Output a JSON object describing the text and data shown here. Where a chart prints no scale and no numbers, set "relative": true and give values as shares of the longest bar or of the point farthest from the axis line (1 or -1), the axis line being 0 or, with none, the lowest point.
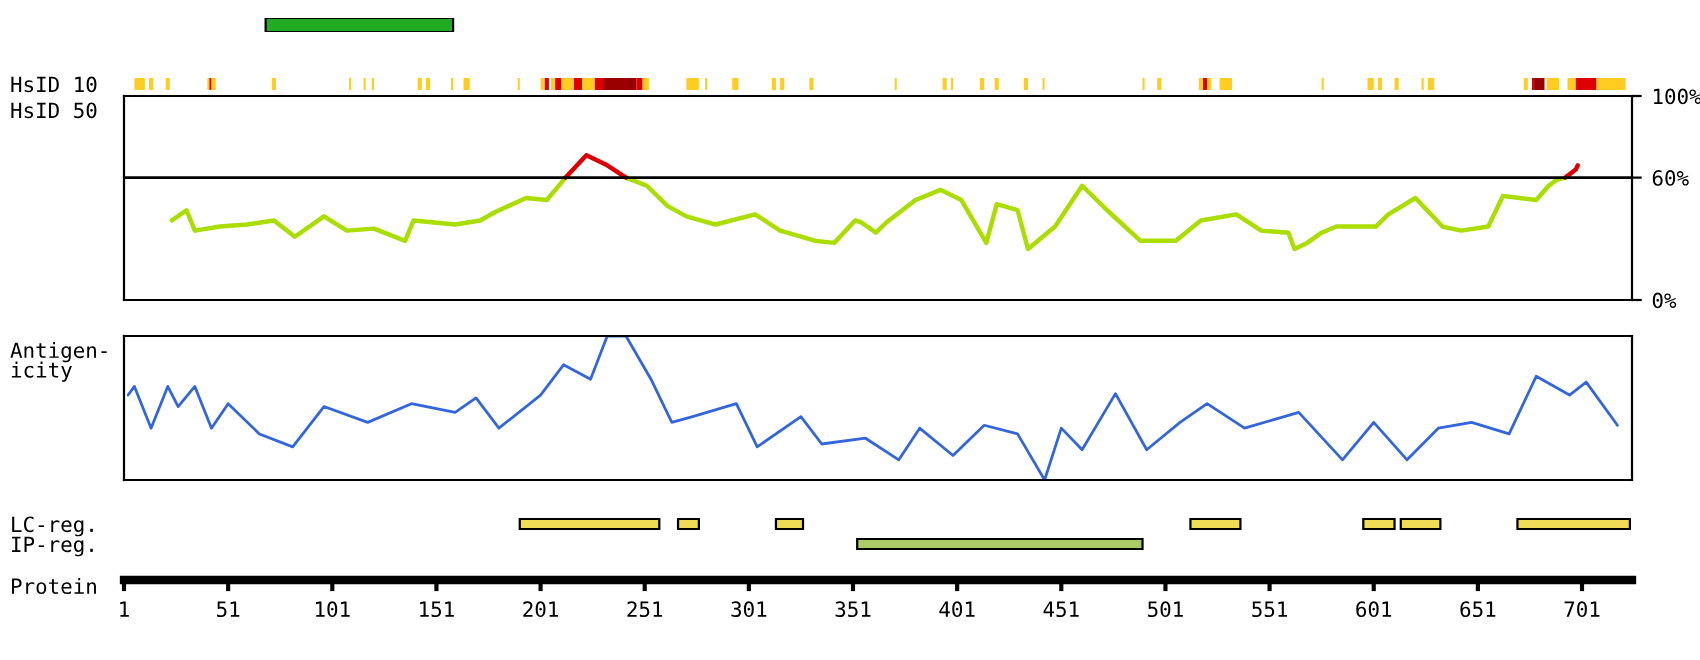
{
  "chart_data": [
    {
      "type": "bar",
      "orientation": "horizontal",
      "categories": [
        null
      ],
      "values": [
        90
      ],
      "base": [
        69
      ],
      "color": "#22aa22",
      "xlim": [
        1,
        701
      ],
      "xticks": [
        1,
        51,
        101,
        151,
        201,
        251,
        301,
        351,
        401,
        451,
        501,
        551,
        601,
        651,
        701
      ],
      "tick_labels": false
    },
    {
      "type": "bar",
      "orientation": "horizontal",
      "categories": [
        "HsID 10"
      ],
      "xlim": [
        1,
        725
      ],
      "xticks": [
        1,
        51,
        101,
        151,
        201,
        251,
        301,
        351,
        401,
        451,
        501,
        551,
        601,
        651,
        701
      ],
      "tick_labels": "y",
      "series": [
        {
          "color": "#ffcc22",
          "values": [
            5
          ],
          "base": [
            6
          ]
        },
        {
          "color": "#ffcc22",
          "values": [
            2
          ],
          "base": [
            13
          ]
        },
        {
          "color": "#ffcc22",
          "values": [
            2
          ],
          "base": [
            21
          ]
        },
        {
          "color": "#ffcc22",
          "values": [
            1
          ],
          "base": [
            41
          ]
        },
        {
          "color": "#dd0000",
          "values": [
            1
          ],
          "base": [
            42
          ]
        },
        {
          "color": "#ffcc22",
          "values": [
            2
          ],
          "base": [
            43
          ]
        },
        {
          "color": "#ffcc22",
          "values": [
            2
          ],
          "base": [
            72
          ]
        },
        {
          "color": "#ffcc22",
          "values": [
            1
          ],
          "base": [
            109
          ]
        },
        {
          "color": "#ffcc22",
          "values": [
            1
          ],
          "base": [
            116
          ]
        },
        {
          "color": "#ffcc22",
          "values": [
            1
          ],
          "base": [
            120
          ]
        },
        {
          "color": "#ffcc22",
          "values": [
            2
          ],
          "base": [
            142
          ]
        },
        {
          "color": "#ffcc22",
          "values": [
            2
          ],
          "base": [
            146
          ]
        },
        {
          "color": "#ffcc22",
          "values": [
            1
          ],
          "base": [
            158
          ]
        },
        {
          "color": "#ffcc22",
          "values": [
            3
          ],
          "base": [
            164
          ]
        },
        {
          "color": "#ffcc22",
          "values": [
            1
          ],
          "base": [
            190
          ]
        },
        {
          "color": "#ffcc22",
          "values": [
            2
          ],
          "base": [
            201
          ]
        },
        {
          "color": "#dd0000",
          "values": [
            2
          ],
          "base": [
            203
          ]
        },
        {
          "color": "#ffcc22",
          "values": [
            2
          ],
          "base": [
            206
          ]
        },
        {
          "color": "#dd0000",
          "values": [
            3
          ],
          "base": [
            208
          ]
        },
        {
          "color": "#ffcc22",
          "values": [
            6
          ],
          "base": [
            211
          ]
        },
        {
          "color": "#dd0000",
          "values": [
            4
          ],
          "base": [
            217
          ]
        },
        {
          "color": "#ffcc22",
          "values": [
            6
          ],
          "base": [
            221
          ]
        },
        {
          "color": "#dd0000",
          "values": [
            4
          ],
          "base": [
            227
          ]
        },
        {
          "color": "#990000",
          "values": [
            16
          ],
          "base": [
            231
          ]
        },
        {
          "color": "#dd0000",
          "values": [
            3
          ],
          "base": [
            247
          ]
        },
        {
          "color": "#ffcc22",
          "values": [
            3
          ],
          "base": [
            250
          ]
        },
        {
          "color": "#ffcc22",
          "values": [
            6
          ],
          "base": [
            271
          ]
        },
        {
          "color": "#ffcc22",
          "values": [
            1
          ],
          "base": [
            280
          ]
        },
        {
          "color": "#ffcc22",
          "values": [
            3
          ],
          "base": [
            293
          ]
        },
        {
          "color": "#ffcc22",
          "values": [
            2
          ],
          "base": [
            312
          ]
        },
        {
          "color": "#ffcc22",
          "values": [
            2
          ],
          "base": [
            316
          ]
        },
        {
          "color": "#ffcc22",
          "values": [
            2
          ],
          "base": [
            330
          ]
        },
        {
          "color": "#ffcc22",
          "values": [
            1
          ],
          "base": [
            371
          ]
        },
        {
          "color": "#ffcc22",
          "values": [
            2
          ],
          "base": [
            394
          ]
        },
        {
          "color": "#ffcc22",
          "values": [
            1
          ],
          "base": [
            398
          ]
        },
        {
          "color": "#ffcc22",
          "values": [
            2
          ],
          "base": [
            412
          ]
        },
        {
          "color": "#ffcc22",
          "values": [
            2
          ],
          "base": [
            419
          ]
        },
        {
          "color": "#ffcc22",
          "values": [
            2
          ],
          "base": [
            433
          ]
        },
        {
          "color": "#ffcc22",
          "values": [
            1
          ],
          "base": [
            442
          ]
        },
        {
          "color": "#ffcc22",
          "values": [
            1
          ],
          "base": [
            490
          ]
        },
        {
          "color": "#ffcc22",
          "values": [
            2
          ],
          "base": [
            497
          ]
        },
        {
          "color": "#ffcc22",
          "values": [
            2
          ],
          "base": [
            517
          ]
        },
        {
          "color": "#dd0000",
          "values": [
            2
          ],
          "base": [
            519
          ]
        },
        {
          "color": "#ffcc22",
          "values": [
            2
          ],
          "base": [
            521
          ]
        },
        {
          "color": "#ffcc22",
          "values": [
            6
          ],
          "base": [
            527
          ]
        },
        {
          "color": "#ffcc22",
          "values": [
            1
          ],
          "base": [
            576
          ]
        },
        {
          "color": "#ffcc22",
          "values": [
            3
          ],
          "base": [
            598
          ]
        },
        {
          "color": "#ffcc22",
          "values": [
            2
          ],
          "base": [
            603
          ]
        },
        {
          "color": "#ffcc22",
          "values": [
            2
          ],
          "base": [
            611
          ]
        },
        {
          "color": "#ffcc22",
          "values": [
            1
          ],
          "base": [
            624
          ]
        },
        {
          "color": "#ffcc22",
          "values": [
            3
          ],
          "base": [
            627
          ]
        },
        {
          "color": "#ffcc22",
          "values": [
            2
          ],
          "base": [
            673
          ]
        },
        {
          "color": "#dd0000",
          "values": [
            1
          ],
          "base": [
            677
          ]
        },
        {
          "color": "#990000",
          "values": [
            5
          ],
          "base": [
            678
          ]
        },
        {
          "color": "#ffcc22",
          "values": [
            6
          ],
          "base": [
            684
          ]
        },
        {
          "color": "#ffcc22",
          "values": [
            4
          ],
          "base": [
            694
          ]
        },
        {
          "color": "#dd0000",
          "values": [
            10
          ],
          "base": [
            698
          ]
        },
        {
          "color": "#ffcc22",
          "values": [
            14
          ],
          "base": [
            708
          ]
        }
      ]
    },
    {
      "type": "line",
      "ylabel": "HsID 50",
      "xlim": [
        1,
        725
      ],
      "xticks": [
        1,
        51,
        101,
        151,
        201,
        251,
        301,
        351,
        401,
        451,
        501,
        551,
        601,
        651,
        701
      ],
      "ylim": [
        0,
        100
      ],
      "yticks": [
        {
          "value": 0,
          "label": "0%"
        },
        {
          "value": 60,
          "label": "60%"
        },
        {
          "value": 100,
          "label": "100%"
        }
      ],
      "tick_labels": "y",
      "ref_lines": [
        {
          "axis": "y",
          "value": 60,
          "color": "#000000"
        }
      ],
      "series": [
        {
          "color": "#aadd00",
          "x": [
            24,
            31,
            35,
            47,
            60,
            73,
            83,
            97,
            108,
            121,
            136,
            140,
            160,
            172,
            179,
            194,
            204,
            213,
            223,
            233,
            242,
            252,
            262,
            271,
            285,
            304,
            316,
            333,
            342,
            352,
            355,
            362,
            367,
            381,
            393,
            403,
            415,
            420,
            430,
            435,
            448,
            461,
            473,
            489,
            506,
            518,
            535,
            547,
            560,
            563,
            569,
            576,
            583,
            602,
            608,
            621,
            634,
            643,
            656,
            663,
            679,
            685,
            689,
            693
          ],
          "values": [
            39,
            44,
            34,
            36,
            37,
            39,
            31,
            41,
            34,
            35,
            29,
            39,
            37,
            39,
            43,
            50,
            49,
            60,
            null,
            null,
            60,
            56,
            46,
            41,
            37,
            42,
            34,
            29,
            28,
            39,
            38,
            33,
            38,
            49,
            54,
            49,
            28,
            47,
            44,
            25,
            36,
            56,
            44,
            29,
            29,
            39,
            42,
            34,
            33,
            25,
            28,
            33,
            36,
            36,
            42,
            50,
            36,
            34,
            36,
            51,
            49,
            56,
            59,
            60
          ]
        },
        {
          "color": "#dd0000",
          "x": [
            213,
            223,
            233,
            242
          ],
          "values": [
            60,
            71,
            66,
            60
          ]
        },
        {
          "color": "#dd0000",
          "x": [
            693,
            698,
            699
          ],
          "values": [
            60,
            64,
            66
          ]
        }
      ]
    },
    {
      "type": "line",
      "ylabel": "Antigen-\nicity",
      "relative": true,
      "xlim": [
        1,
        725
      ],
      "xticks": [
        1,
        51,
        101,
        151,
        201,
        251,
        301,
        351,
        401,
        451,
        501,
        551,
        601,
        651,
        701
      ],
      "tick_labels": false,
      "series": [
        {
          "color": "#3366dd",
          "x": [
            3,
            6,
            14,
            22,
            27,
            35,
            43,
            51,
            66,
            82,
            97,
            118,
            139,
            160,
            170,
            181,
            201,
            212,
            225,
            233,
            242,
            254,
            264,
            274,
            295,
            305,
            326,
            336,
            357,
            373,
            383,
            399,
            414,
            430,
            443,
            451,
            461,
            477,
            492,
            508,
            521,
            539,
            565,
            586,
            601,
            617,
            632,
            648,
            666,
            679,
            695,
            703,
            718
          ],
          "values": [
            0.59,
            0.65,
            0.36,
            0.65,
            0.51,
            0.65,
            0.36,
            0.53,
            0.32,
            0.23,
            0.51,
            0.4,
            0.53,
            0.47,
            0.57,
            0.36,
            0.59,
            0.8,
            0.7,
            1,
            1,
            0.7,
            0.4,
            0.44,
            0.53,
            0.23,
            0.44,
            0.25,
            0.29,
            0.14,
            0.36,
            0.17,
            0.38,
            0.32,
            0,
            0.36,
            0.21,
            0.6,
            0.21,
            0.4,
            0.53,
            0.36,
            0.47,
            0.14,
            0.4,
            0.14,
            0.36,
            0.4,
            0.32,
            0.72,
            0.59,
            0.68,
            0.38
          ]
        }
      ]
    },
    {
      "type": "bar",
      "orientation": "horizontal",
      "categories": [
        "LC-reg.",
        "IP-reg."
      ],
      "xlabel": "Protein",
      "xlim": [
        1,
        725
      ],
      "xticks": [
        1,
        51,
        101,
        151,
        201,
        251,
        301,
        351,
        401,
        451,
        501,
        551,
        601,
        651,
        701
      ],
      "series": [
        {
          "color": "#eedd55",
          "values": [
            67,
            null
          ],
          "base": [
            191,
            null
          ]
        },
        {
          "color": "#eedd55",
          "values": [
            10,
            null
          ],
          "base": [
            267,
            null
          ]
        },
        {
          "color": "#eedd55",
          "values": [
            13,
            null
          ],
          "base": [
            314,
            null
          ]
        },
        {
          "color": "#eedd55",
          "values": [
            24,
            null
          ],
          "base": [
            513,
            null
          ]
        },
        {
          "color": "#eedd55",
          "values": [
            15,
            null
          ],
          "base": [
            596,
            null
          ]
        },
        {
          "color": "#eedd55",
          "values": [
            19,
            null
          ],
          "base": [
            614,
            null
          ]
        },
        {
          "color": "#eedd55",
          "values": [
            54,
            null
          ],
          "base": [
            670,
            null
          ]
        },
        {
          "color": "#aacc66",
          "values": [
            null,
            137
          ],
          "base": [
            null,
            353
          ]
        }
      ]
    }
  ]
}
